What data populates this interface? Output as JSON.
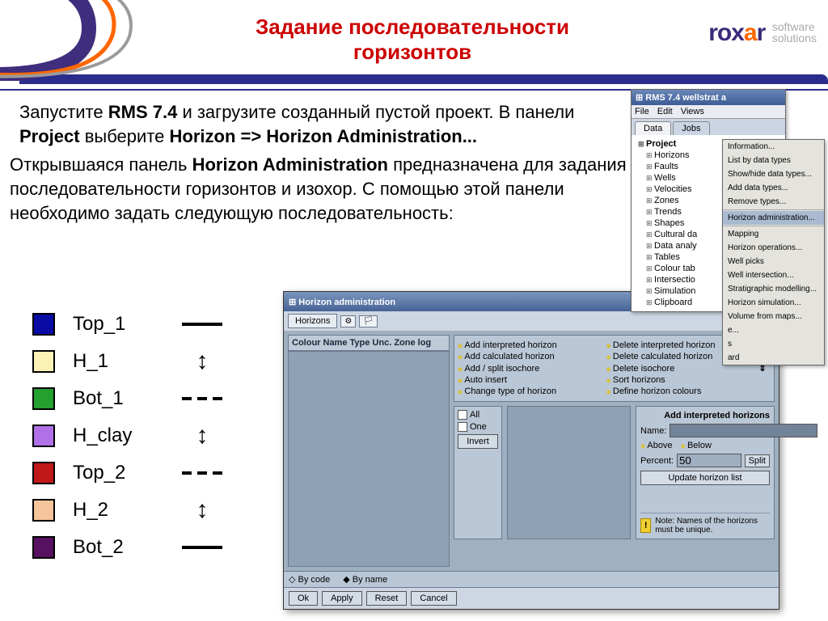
{
  "header": {
    "title": "Задание последовательности горизонтов",
    "logo_soft1": "software",
    "logo_soft2": "solutions",
    "stripe_color": "#2b2d8c",
    "curve_colors": [
      "#3f2e7d",
      "#ff6600",
      "#8a8a8a"
    ]
  },
  "intro": {
    "pre": "Запустите ",
    "b1": "RMS 7.4",
    "mid1": " и загрузите созданный пустой проект. В панели ",
    "b2": "Project",
    "mid2": " выберите ",
    "b3": "Horizon => Horizon Administration..."
  },
  "desc": {
    "pre": "Открывшаяся панель ",
    "b1": "Horizon Administration",
    "rest": " предназначена для задания последовательности горизонтов и изохор. С помощью этой панели необходимо задать следующую последовательность:"
  },
  "legend": {
    "items": [
      {
        "label": "Top_1",
        "color": "#0a0aa5",
        "symbol": "solid"
      },
      {
        "label": "H_1",
        "color": "#fdf2b5",
        "symbol": "arrow"
      },
      {
        "label": "Bot_1",
        "color": "#24a02e",
        "symbol": "dashed"
      },
      {
        "label": "H_clay",
        "color": "#b070e8",
        "symbol": "arrow"
      },
      {
        "label": "Top_2",
        "color": "#c01818",
        "symbol": "dashed"
      },
      {
        "label": "H_2",
        "color": "#f5c49a",
        "symbol": "arrow"
      },
      {
        "label": "Bot_2",
        "color": "#581060",
        "symbol": "solid"
      }
    ]
  },
  "rms_panel": {
    "title": "RMS 7.4 wellstrat a",
    "menu": [
      "File",
      "Edit",
      "Views"
    ],
    "tabs": [
      "Data",
      "Jobs"
    ],
    "tree_root": "Project",
    "tree": [
      "Horizons",
      "Faults",
      "Wells",
      "Velocities",
      "Zones",
      "Trends",
      "Shapes",
      "Cultural da",
      "Data analy",
      "Tables",
      "Colour tab",
      "Intersectio",
      "Simulation",
      "Clipboard"
    ]
  },
  "context_menu": {
    "items_top": [
      "Information...",
      "List by data types",
      "Show/hide data types...",
      "Add data types...",
      "Remove types..."
    ],
    "selected": "Horizon administration...",
    "items_bot": [
      "Mapping",
      "Horizon operations...",
      "Well picks",
      "Well intersection...",
      "Stratigraphic modelling...",
      "Horizon simulation...",
      "Volume from maps...",
      "e...",
      "s",
      "ard"
    ]
  },
  "ha": {
    "title": "Horizon administration",
    "tab": "Horizons",
    "list_header": "Colour Name Type Unc. Zone log",
    "cmds_left": [
      "Add interpreted horizon",
      "Add calculated horizon",
      "Add / split isochore",
      "Auto insert",
      "Change type of horizon"
    ],
    "cmds_right": [
      "Delete interpreted horizon",
      "Delete calculated horizon",
      "Delete isochore",
      "Sort horizons",
      "Define horizon colours"
    ],
    "cmd_sym": [
      "—",
      "····",
      "⇕",
      "",
      ""
    ],
    "sel_all": "All",
    "sel_one": "One",
    "invert": "Invert",
    "rt_header": "Add interpreted horizons",
    "name_lbl": "Name:",
    "above": "Above",
    "below": "Below",
    "percent_lbl": "Percent:",
    "percent_val": "50",
    "split": "Split",
    "update": "Update horizon list",
    "note": "Note: Names of the horizons must be unique.",
    "radio_code": "By code",
    "radio_name": "By name",
    "ok": "Ok",
    "apply": "Apply",
    "reset": "Reset",
    "cancel": "Cancel"
  }
}
